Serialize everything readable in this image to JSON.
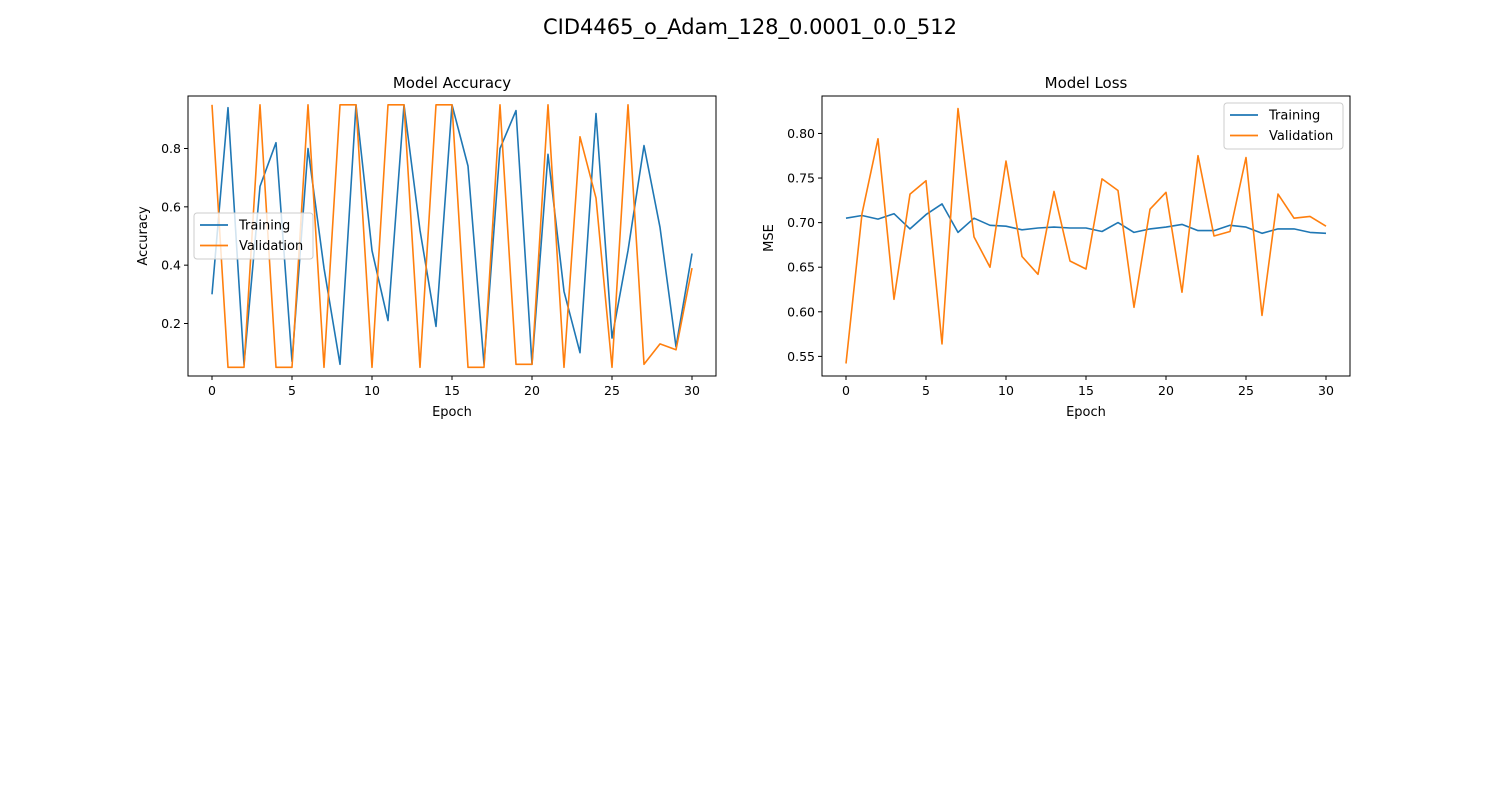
{
  "figure_title": "CID4465_o_Adam_128_0.0001_0.0_512",
  "colors": {
    "training": "#1f77b4",
    "validation": "#ff7f0e"
  },
  "chart_data": [
    {
      "type": "line",
      "title": "Model Accuracy",
      "xlabel": "Epoch",
      "ylabel": "Accuracy",
      "xlim": [
        -1.5,
        31.5
      ],
      "ylim": [
        0.02,
        0.98
      ],
      "xticks": [
        0,
        5,
        10,
        15,
        20,
        25,
        30
      ],
      "yticks": [
        0.2,
        0.4,
        0.6,
        0.8
      ],
      "ytick_decimals": 1,
      "legend": "center-left",
      "grid": false,
      "x": [
        0,
        1,
        2,
        3,
        4,
        5,
        6,
        7,
        8,
        9,
        10,
        11,
        12,
        13,
        14,
        15,
        16,
        17,
        18,
        19,
        20,
        21,
        22,
        23,
        24,
        25,
        26,
        27,
        28,
        29,
        30
      ],
      "series": [
        {
          "name": "Training",
          "color": "#1f77b4",
          "values": [
            0.3,
            0.94,
            0.06,
            0.67,
            0.82,
            0.07,
            0.8,
            0.39,
            0.06,
            0.95,
            0.45,
            0.21,
            0.95,
            0.52,
            0.19,
            0.95,
            0.74,
            0.06,
            0.8,
            0.93,
            0.06,
            0.78,
            0.31,
            0.1,
            0.92,
            0.15,
            0.45,
            0.81,
            0.53,
            0.12,
            0.44
          ]
        },
        {
          "name": "Validation",
          "color": "#ff7f0e",
          "values": [
            0.95,
            0.05,
            0.05,
            0.95,
            0.05,
            0.05,
            0.95,
            0.05,
            0.95,
            0.95,
            0.05,
            0.95,
            0.95,
            0.05,
            0.95,
            0.95,
            0.05,
            0.05,
            0.95,
            0.06,
            0.06,
            0.95,
            0.05,
            0.84,
            0.63,
            0.05,
            0.95,
            0.06,
            0.13,
            0.11,
            0.39
          ]
        }
      ]
    },
    {
      "type": "line",
      "title": "Model Loss",
      "xlabel": "Epoch",
      "ylabel": "MSE",
      "xlim": [
        -1.5,
        31.5
      ],
      "ylim": [
        0.528,
        0.842
      ],
      "xticks": [
        0,
        5,
        10,
        15,
        20,
        25,
        30
      ],
      "yticks": [
        0.55,
        0.6,
        0.65,
        0.7,
        0.75,
        0.8
      ],
      "ytick_decimals": 2,
      "legend": "top-right",
      "grid": false,
      "x": [
        0,
        1,
        2,
        3,
        4,
        5,
        6,
        7,
        8,
        9,
        10,
        11,
        12,
        13,
        14,
        15,
        16,
        17,
        18,
        19,
        20,
        21,
        22,
        23,
        24,
        25,
        26,
        27,
        28,
        29,
        30
      ],
      "series": [
        {
          "name": "Training",
          "color": "#1f77b4",
          "values": [
            0.705,
            0.708,
            0.704,
            0.71,
            0.693,
            0.709,
            0.721,
            0.689,
            0.705,
            0.697,
            0.696,
            0.692,
            0.694,
            0.695,
            0.694,
            0.694,
            0.69,
            0.7,
            0.689,
            0.693,
            0.695,
            0.698,
            0.691,
            0.691,
            0.697,
            0.695,
            0.688,
            0.693,
            0.693,
            0.689,
            0.688
          ]
        },
        {
          "name": "Validation",
          "color": "#ff7f0e",
          "values": [
            0.542,
            0.71,
            0.794,
            0.614,
            0.732,
            0.747,
            0.564,
            0.828,
            0.684,
            0.65,
            0.769,
            0.662,
            0.642,
            0.735,
            0.657,
            0.648,
            0.749,
            0.736,
            0.605,
            0.715,
            0.734,
            0.622,
            0.775,
            0.685,
            0.69,
            0.773,
            0.596,
            0.732,
            0.705,
            0.707,
            0.696
          ]
        }
      ]
    }
  ]
}
